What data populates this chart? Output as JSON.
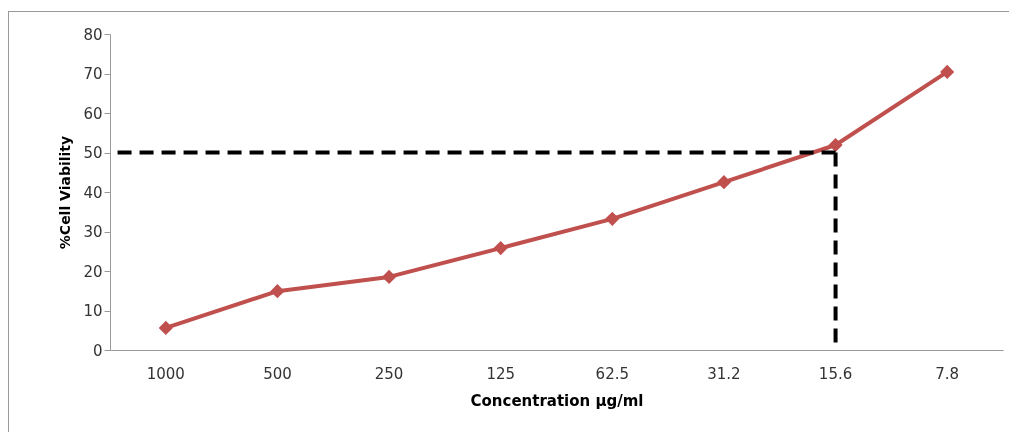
{
  "chart_data": {
    "type": "line",
    "xlabel": "Concentration µg/ml",
    "ylabel": "%Cell Viability",
    "categories": [
      "1000",
      "500",
      "250",
      "125",
      "62.5",
      "31.2",
      "15.6",
      "7.8"
    ],
    "series": [
      {
        "color": "#c0504d",
        "values": [
          5.6,
          14.9,
          18.5,
          25.8,
          33.2,
          42.5,
          51.9,
          70.4
        ]
      }
    ],
    "ylim": [
      0,
      80
    ],
    "yticks": [
      0,
      10,
      20,
      30,
      40,
      50,
      60,
      70,
      80
    ],
    "ref_lines": [
      {
        "axis": "y",
        "value": 50,
        "color": "#000000",
        "line_style": "dashed"
      },
      {
        "axis": "x",
        "value": "15.6",
        "color": "#000000",
        "line_style": "dashed"
      }
    ],
    "grid": false,
    "marker": "diamond",
    "line_style": "solid"
  }
}
